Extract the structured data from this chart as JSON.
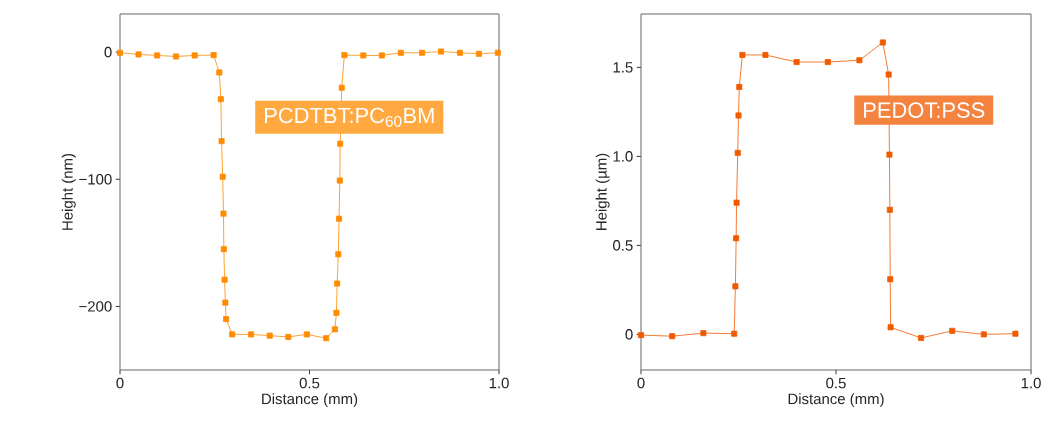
{
  "chart_data": [
    {
      "type": "line",
      "xlabel": "Distance (mm)",
      "ylabel": "Height (nm)",
      "marker": "square",
      "line_style": "solid",
      "xlim": [
        0,
        1.0
      ],
      "ylim": [
        -250,
        30
      ],
      "xticks": [
        0,
        0.5,
        {
          "value": 1.0,
          "label": "1.0"
        }
      ],
      "yticks": [
        0,
        {
          "value": -100,
          "label": "−100"
        },
        {
          "value": -200,
          "label": "−200"
        }
      ],
      "series": [
        {
          "name": "PCDTBT:PC$_{60}$BM",
          "color": "#ff8c00",
          "x": [
            0,
            0.049,
            0.098,
            0.148,
            0.197,
            0.247,
            0.262,
            0.266,
            0.268,
            0.271,
            0.273,
            0.274,
            0.276,
            0.278,
            0.28,
            0.296,
            0.346,
            0.395,
            0.444,
            0.493,
            0.544,
            0.567,
            0.571,
            0.573,
            0.576,
            0.578,
            0.58,
            0.581,
            0.585,
            0.592,
            0.642,
            0.691,
            0.741,
            0.797,
            0.847,
            0.897,
            0.947,
            0.997
          ],
          "values": [
            -0.5,
            -1.8,
            -2.6,
            -3.4,
            -2.6,
            -2.3,
            -16,
            -37,
            -70,
            -98,
            -127,
            -155,
            -179,
            -197,
            -210,
            -222,
            -222,
            -223,
            -224,
            -222,
            -225,
            -218,
            -205,
            -182,
            -159,
            -131,
            -101,
            -72,
            -28,
            -2.3,
            -2.6,
            -2.6,
            -0.5,
            -0.5,
            0.5,
            -0.5,
            -1.3,
            -0.5
          ]
        }
      ]
    },
    {
      "type": "line",
      "xlabel": "Distance (mm)",
      "ylabel": "Height (µm)",
      "marker": "square",
      "line_style": "solid",
      "xlim": [
        0,
        1.0
      ],
      "ylim": [
        -0.2,
        1.8
      ],
      "xticks": [
        0,
        0.5,
        {
          "value": 1.0,
          "label": "1.0"
        }
      ],
      "yticks": [
        0,
        0.5,
        {
          "value": 1.0,
          "label": "1.0"
        },
        1.5
      ],
      "series": [
        {
          "name": "PEDOT:PSS",
          "color": "#f05a00",
          "x": [
            0,
            0.08,
            0.16,
            0.239,
            0.242,
            0.244,
            0.245,
            0.248,
            0.25,
            0.252,
            0.26,
            0.319,
            0.399,
            0.479,
            0.56,
            0.62,
            0.635,
            0.637,
            0.638,
            0.639,
            0.64,
            0.718,
            0.798,
            0.879,
            0.96
          ],
          "values": [
            -0.004,
            -0.01,
            0.007,
            0.004,
            0.27,
            0.54,
            0.74,
            1.02,
            1.23,
            1.39,
            1.57,
            1.57,
            1.53,
            1.53,
            1.54,
            1.64,
            1.46,
            1.01,
            0.7,
            0.31,
            0.04,
            -0.02,
            0.02,
            0.0,
            0.004
          ]
        }
      ]
    }
  ]
}
